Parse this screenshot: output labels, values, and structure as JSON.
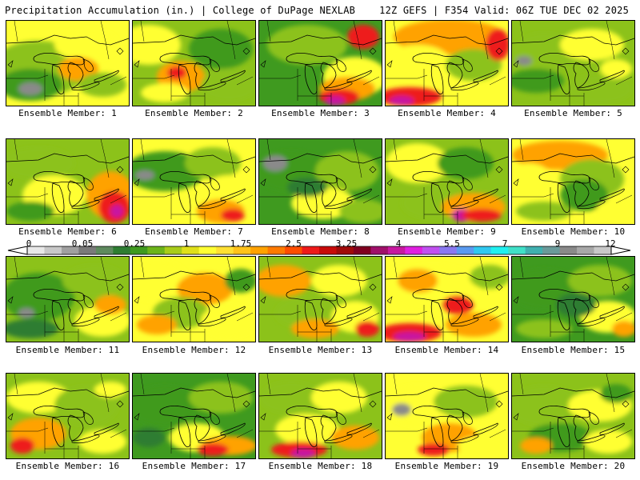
{
  "header": {
    "title": "Precipitation Accumulation (in.) | College of DuPage NEXLAB",
    "valid": "12Z GEFS | F354 Valid: 06Z TUE DEC 02 2025"
  },
  "members": [
    {
      "label": "Ensemble Member: 1"
    },
    {
      "label": "Ensemble Member: 2"
    },
    {
      "label": "Ensemble Member: 3"
    },
    {
      "label": "Ensemble Member: 4"
    },
    {
      "label": "Ensemble Member: 5"
    },
    {
      "label": "Ensemble Member: 6"
    },
    {
      "label": "Ensemble Member: 7"
    },
    {
      "label": "Ensemble Member: 8"
    },
    {
      "label": "Ensemble Member: 9"
    },
    {
      "label": "Ensemble Member: 10"
    },
    {
      "label": "Ensemble Member: 11"
    },
    {
      "label": "Ensemble Member: 12"
    },
    {
      "label": "Ensemble Member: 13"
    },
    {
      "label": "Ensemble Member: 14"
    },
    {
      "label": "Ensemble Member: 15"
    },
    {
      "label": "Ensemble Member: 16"
    },
    {
      "label": "Ensemble Member: 17"
    },
    {
      "label": "Ensemble Member: 18"
    },
    {
      "label": "Ensemble Member: 19"
    },
    {
      "label": "Ensemble Member: 20"
    }
  ],
  "colorbar": {
    "labels": [
      "0",
      "0.05",
      "0.25",
      "1",
      "1.75",
      "2.5",
      "3.25",
      "4",
      "5.5",
      "7",
      "9",
      "12"
    ],
    "colors": [
      "#e8e8e8",
      "#c8c8c8",
      "#a0a0a0",
      "#7a7a7a",
      "#5e8a5e",
      "#2e7d32",
      "#3f9a1f",
      "#6cb41a",
      "#a8cc1a",
      "#e0e01a",
      "#ffff33",
      "#ffe033",
      "#ffc21a",
      "#ffa200",
      "#ff7a00",
      "#ff4d00",
      "#ee1a1a",
      "#c80a0a",
      "#a00a0a",
      "#800020",
      "#a0106a",
      "#c818a0",
      "#e020e0",
      "#c050f0",
      "#8a78f0",
      "#5a9af0",
      "#30c8f0",
      "#20f0f0",
      "#40e0c8",
      "#40b0b0",
      "#6a9a9a",
      "#8a8a8a",
      "#a8a8a8",
      "#c8c8c8"
    ]
  },
  "palette": {
    "dark_green": "#2e7d32",
    "green": "#3f9a1f",
    "light_green": "#8cc21a",
    "yellow": "#ffff33",
    "orange": "#ffa200",
    "red": "#ee1a1a",
    "magenta": "#c818a0",
    "gray": "#8a8a8a"
  }
}
